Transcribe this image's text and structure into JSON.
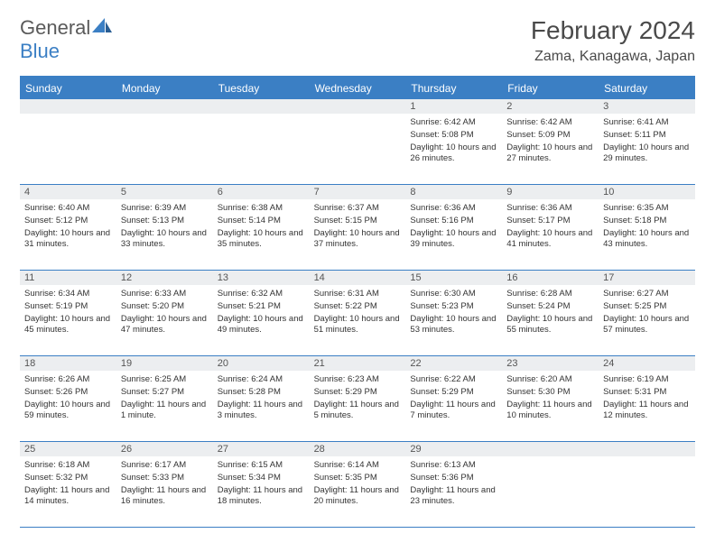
{
  "brand": {
    "part1": "General",
    "part2": "Blue"
  },
  "title": "February 2024",
  "location": "Zama, Kanagawa, Japan",
  "colors": {
    "accent": "#3b7fc4",
    "header_bg": "#3b7fc4",
    "daynum_bg": "#eceef0",
    "text": "#333333",
    "muted": "#5a5a5a",
    "bg": "#ffffff"
  },
  "weekdays": [
    "Sunday",
    "Monday",
    "Tuesday",
    "Wednesday",
    "Thursday",
    "Friday",
    "Saturday"
  ],
  "weeks": [
    [
      null,
      null,
      null,
      null,
      {
        "n": "1",
        "sr": "Sunrise: 6:42 AM",
        "ss": "Sunset: 5:08 PM",
        "dl": "Daylight: 10 hours and 26 minutes."
      },
      {
        "n": "2",
        "sr": "Sunrise: 6:42 AM",
        "ss": "Sunset: 5:09 PM",
        "dl": "Daylight: 10 hours and 27 minutes."
      },
      {
        "n": "3",
        "sr": "Sunrise: 6:41 AM",
        "ss": "Sunset: 5:11 PM",
        "dl": "Daylight: 10 hours and 29 minutes."
      }
    ],
    [
      {
        "n": "4",
        "sr": "Sunrise: 6:40 AM",
        "ss": "Sunset: 5:12 PM",
        "dl": "Daylight: 10 hours and 31 minutes."
      },
      {
        "n": "5",
        "sr": "Sunrise: 6:39 AM",
        "ss": "Sunset: 5:13 PM",
        "dl": "Daylight: 10 hours and 33 minutes."
      },
      {
        "n": "6",
        "sr": "Sunrise: 6:38 AM",
        "ss": "Sunset: 5:14 PM",
        "dl": "Daylight: 10 hours and 35 minutes."
      },
      {
        "n": "7",
        "sr": "Sunrise: 6:37 AM",
        "ss": "Sunset: 5:15 PM",
        "dl": "Daylight: 10 hours and 37 minutes."
      },
      {
        "n": "8",
        "sr": "Sunrise: 6:36 AM",
        "ss": "Sunset: 5:16 PM",
        "dl": "Daylight: 10 hours and 39 minutes."
      },
      {
        "n": "9",
        "sr": "Sunrise: 6:36 AM",
        "ss": "Sunset: 5:17 PM",
        "dl": "Daylight: 10 hours and 41 minutes."
      },
      {
        "n": "10",
        "sr": "Sunrise: 6:35 AM",
        "ss": "Sunset: 5:18 PM",
        "dl": "Daylight: 10 hours and 43 minutes."
      }
    ],
    [
      {
        "n": "11",
        "sr": "Sunrise: 6:34 AM",
        "ss": "Sunset: 5:19 PM",
        "dl": "Daylight: 10 hours and 45 minutes."
      },
      {
        "n": "12",
        "sr": "Sunrise: 6:33 AM",
        "ss": "Sunset: 5:20 PM",
        "dl": "Daylight: 10 hours and 47 minutes."
      },
      {
        "n": "13",
        "sr": "Sunrise: 6:32 AM",
        "ss": "Sunset: 5:21 PM",
        "dl": "Daylight: 10 hours and 49 minutes."
      },
      {
        "n": "14",
        "sr": "Sunrise: 6:31 AM",
        "ss": "Sunset: 5:22 PM",
        "dl": "Daylight: 10 hours and 51 minutes."
      },
      {
        "n": "15",
        "sr": "Sunrise: 6:30 AM",
        "ss": "Sunset: 5:23 PM",
        "dl": "Daylight: 10 hours and 53 minutes."
      },
      {
        "n": "16",
        "sr": "Sunrise: 6:28 AM",
        "ss": "Sunset: 5:24 PM",
        "dl": "Daylight: 10 hours and 55 minutes."
      },
      {
        "n": "17",
        "sr": "Sunrise: 6:27 AM",
        "ss": "Sunset: 5:25 PM",
        "dl": "Daylight: 10 hours and 57 minutes."
      }
    ],
    [
      {
        "n": "18",
        "sr": "Sunrise: 6:26 AM",
        "ss": "Sunset: 5:26 PM",
        "dl": "Daylight: 10 hours and 59 minutes."
      },
      {
        "n": "19",
        "sr": "Sunrise: 6:25 AM",
        "ss": "Sunset: 5:27 PM",
        "dl": "Daylight: 11 hours and 1 minute."
      },
      {
        "n": "20",
        "sr": "Sunrise: 6:24 AM",
        "ss": "Sunset: 5:28 PM",
        "dl": "Daylight: 11 hours and 3 minutes."
      },
      {
        "n": "21",
        "sr": "Sunrise: 6:23 AM",
        "ss": "Sunset: 5:29 PM",
        "dl": "Daylight: 11 hours and 5 minutes."
      },
      {
        "n": "22",
        "sr": "Sunrise: 6:22 AM",
        "ss": "Sunset: 5:29 PM",
        "dl": "Daylight: 11 hours and 7 minutes."
      },
      {
        "n": "23",
        "sr": "Sunrise: 6:20 AM",
        "ss": "Sunset: 5:30 PM",
        "dl": "Daylight: 11 hours and 10 minutes."
      },
      {
        "n": "24",
        "sr": "Sunrise: 6:19 AM",
        "ss": "Sunset: 5:31 PM",
        "dl": "Daylight: 11 hours and 12 minutes."
      }
    ],
    [
      {
        "n": "25",
        "sr": "Sunrise: 6:18 AM",
        "ss": "Sunset: 5:32 PM",
        "dl": "Daylight: 11 hours and 14 minutes."
      },
      {
        "n": "26",
        "sr": "Sunrise: 6:17 AM",
        "ss": "Sunset: 5:33 PM",
        "dl": "Daylight: 11 hours and 16 minutes."
      },
      {
        "n": "27",
        "sr": "Sunrise: 6:15 AM",
        "ss": "Sunset: 5:34 PM",
        "dl": "Daylight: 11 hours and 18 minutes."
      },
      {
        "n": "28",
        "sr": "Sunrise: 6:14 AM",
        "ss": "Sunset: 5:35 PM",
        "dl": "Daylight: 11 hours and 20 minutes."
      },
      {
        "n": "29",
        "sr": "Sunrise: 6:13 AM",
        "ss": "Sunset: 5:36 PM",
        "dl": "Daylight: 11 hours and 23 minutes."
      },
      null,
      null
    ]
  ]
}
